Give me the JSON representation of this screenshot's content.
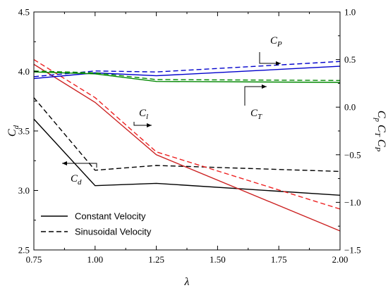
{
  "chart_data": {
    "type": "line",
    "x": [
      0.75,
      1.0,
      1.25,
      2.0
    ],
    "left_axis": {
      "label": "C",
      "label_sub": "d",
      "ylim": [
        2.5,
        4.5
      ],
      "ticks": [
        2.5,
        3.0,
        3.5,
        4.0,
        4.5
      ],
      "tick_labels": [
        "2.5",
        "3.0",
        "3.5",
        "4.0",
        "4.5"
      ]
    },
    "right_axis": {
      "label_parts": [
        "C",
        "p",
        " C",
        "T",
        " C",
        "P"
      ],
      "ylim": [
        -1.5,
        1.0
      ],
      "ticks": [
        -1.5,
        -1.0,
        -0.5,
        0.0,
        0.5,
        1.0
      ],
      "tick_labels": [
        "−1.5",
        "−1.0",
        "−0.5",
        "0.0",
        "0.5",
        "1.0"
      ]
    },
    "x_axis": {
      "label": "λ",
      "xlim": [
        0.75,
        2.0
      ],
      "ticks": [
        0.75,
        1.0,
        1.25,
        1.5,
        1.75,
        2.0
      ],
      "tick_labels": [
        "0.75",
        "1.00",
        "1.25",
        "1.50",
        "1.75",
        "2.00"
      ]
    },
    "series": [
      {
        "id": "cd-const",
        "axis": "left",
        "color": "#000000",
        "dash": false,
        "values": [
          3.6,
          3.04,
          3.06,
          2.96
        ]
      },
      {
        "id": "cd-sin",
        "axis": "left",
        "color": "#000000",
        "dash": true,
        "values": [
          3.78,
          3.17,
          3.21,
          3.16
        ]
      },
      {
        "id": "cl-const",
        "axis": "right",
        "color": "#cc2222",
        "dash": false,
        "values": [
          0.45,
          0.05,
          -0.5,
          -1.3
        ]
      },
      {
        "id": "cl-sin",
        "axis": "right",
        "color": "#ee2222",
        "dash": true,
        "values": [
          0.5,
          0.1,
          -0.47,
          -1.07
        ]
      },
      {
        "id": "cp-const",
        "axis": "right",
        "color": "#0000cc",
        "dash": false,
        "values": [
          0.3,
          0.36,
          0.33,
          0.43
        ]
      },
      {
        "id": "cp-sin",
        "axis": "right",
        "color": "#0000cc",
        "dash": true,
        "values": [
          0.32,
          0.38,
          0.37,
          0.48
        ]
      },
      {
        "id": "ct-const",
        "axis": "right",
        "color": "#008800",
        "dash": false,
        "values": [
          0.37,
          0.35,
          0.27,
          0.26
        ]
      },
      {
        "id": "ct-sin",
        "axis": "right",
        "color": "#008800",
        "dash": true,
        "values": [
          0.38,
          0.36,
          0.29,
          0.28
        ]
      }
    ],
    "annotations": [
      {
        "id": "cp-annotation",
        "text": "C",
        "sub": "P"
      },
      {
        "id": "ct-annotation",
        "text": "C",
        "sub": "T"
      },
      {
        "id": "cl-annotation",
        "text": "C",
        "sub": "l"
      },
      {
        "id": "cd-annotation",
        "text": "C",
        "sub": "d"
      }
    ],
    "legend": {
      "position": "bottom-left",
      "entries": [
        {
          "label": "Constant Velocity",
          "dash": false
        },
        {
          "label": "Sinusoidal Velocity",
          "dash": true
        }
      ]
    },
    "grid": false
  }
}
